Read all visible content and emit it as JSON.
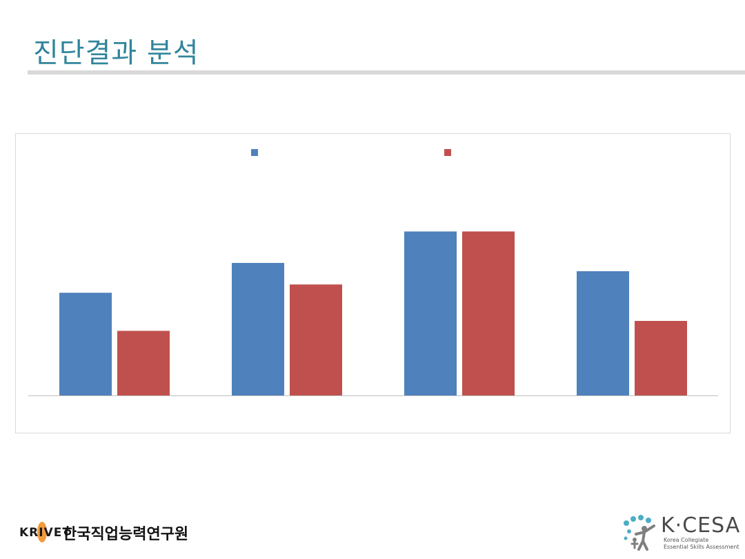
{
  "slide": {
    "title": "진단결과 분석"
  },
  "chart_data": {
    "type": "bar",
    "categories": [
      "",
      "",
      "",
      ""
    ],
    "series": [
      {
        "color": "#4f81bd",
        "values": [
          62,
          80,
          99,
          75
        ]
      },
      {
        "color": "#c0504d",
        "values": [
          39,
          67,
          99,
          45
        ]
      }
    ],
    "ylim": [
      0,
      100
    ],
    "grid": false,
    "legend": "top"
  },
  "footer": {
    "krivet_logo": "KRIVET",
    "krivet_name": "한국직업능력연구원",
    "kcesa_logo": "K·CESA",
    "kcesa_line1": "Korea Collegiate",
    "kcesa_line2": "Essential Skills Assessment"
  }
}
